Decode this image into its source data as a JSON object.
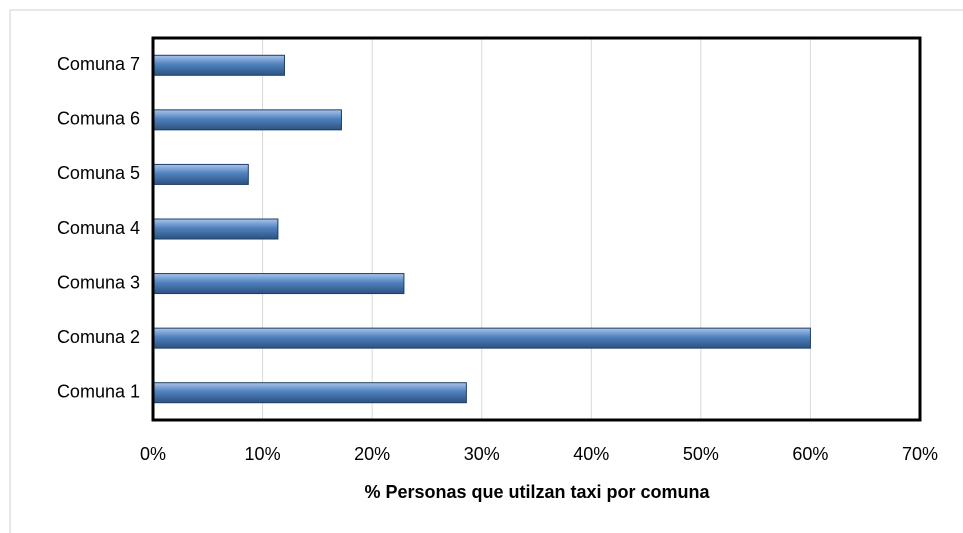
{
  "chart_data": {
    "type": "bar",
    "orientation": "horizontal",
    "x_label": "% Personas que utilzan taxi por comuna",
    "categories": [
      "Comuna 1",
      "Comuna 2",
      "Comuna 3",
      "Comuna 4",
      "Comuna 5",
      "Comuna 6",
      "Comuna 7"
    ],
    "values": [
      28.6,
      60,
      22.9,
      11.4,
      8.7,
      17.2,
      12
    ],
    "color": "#4f81bd",
    "xlim": [
      0,
      70
    ],
    "xticks": [
      {
        "value": 0,
        "label": "0%"
      },
      {
        "value": 10,
        "label": "10%"
      },
      {
        "value": 20,
        "label": "20%"
      },
      {
        "value": 30,
        "label": "30%"
      },
      {
        "value": 40,
        "label": "40%"
      },
      {
        "value": 50,
        "label": "50%"
      },
      {
        "value": 60,
        "label": "60%"
      },
      {
        "value": 70,
        "label": "70%"
      }
    ],
    "grid": true
  }
}
